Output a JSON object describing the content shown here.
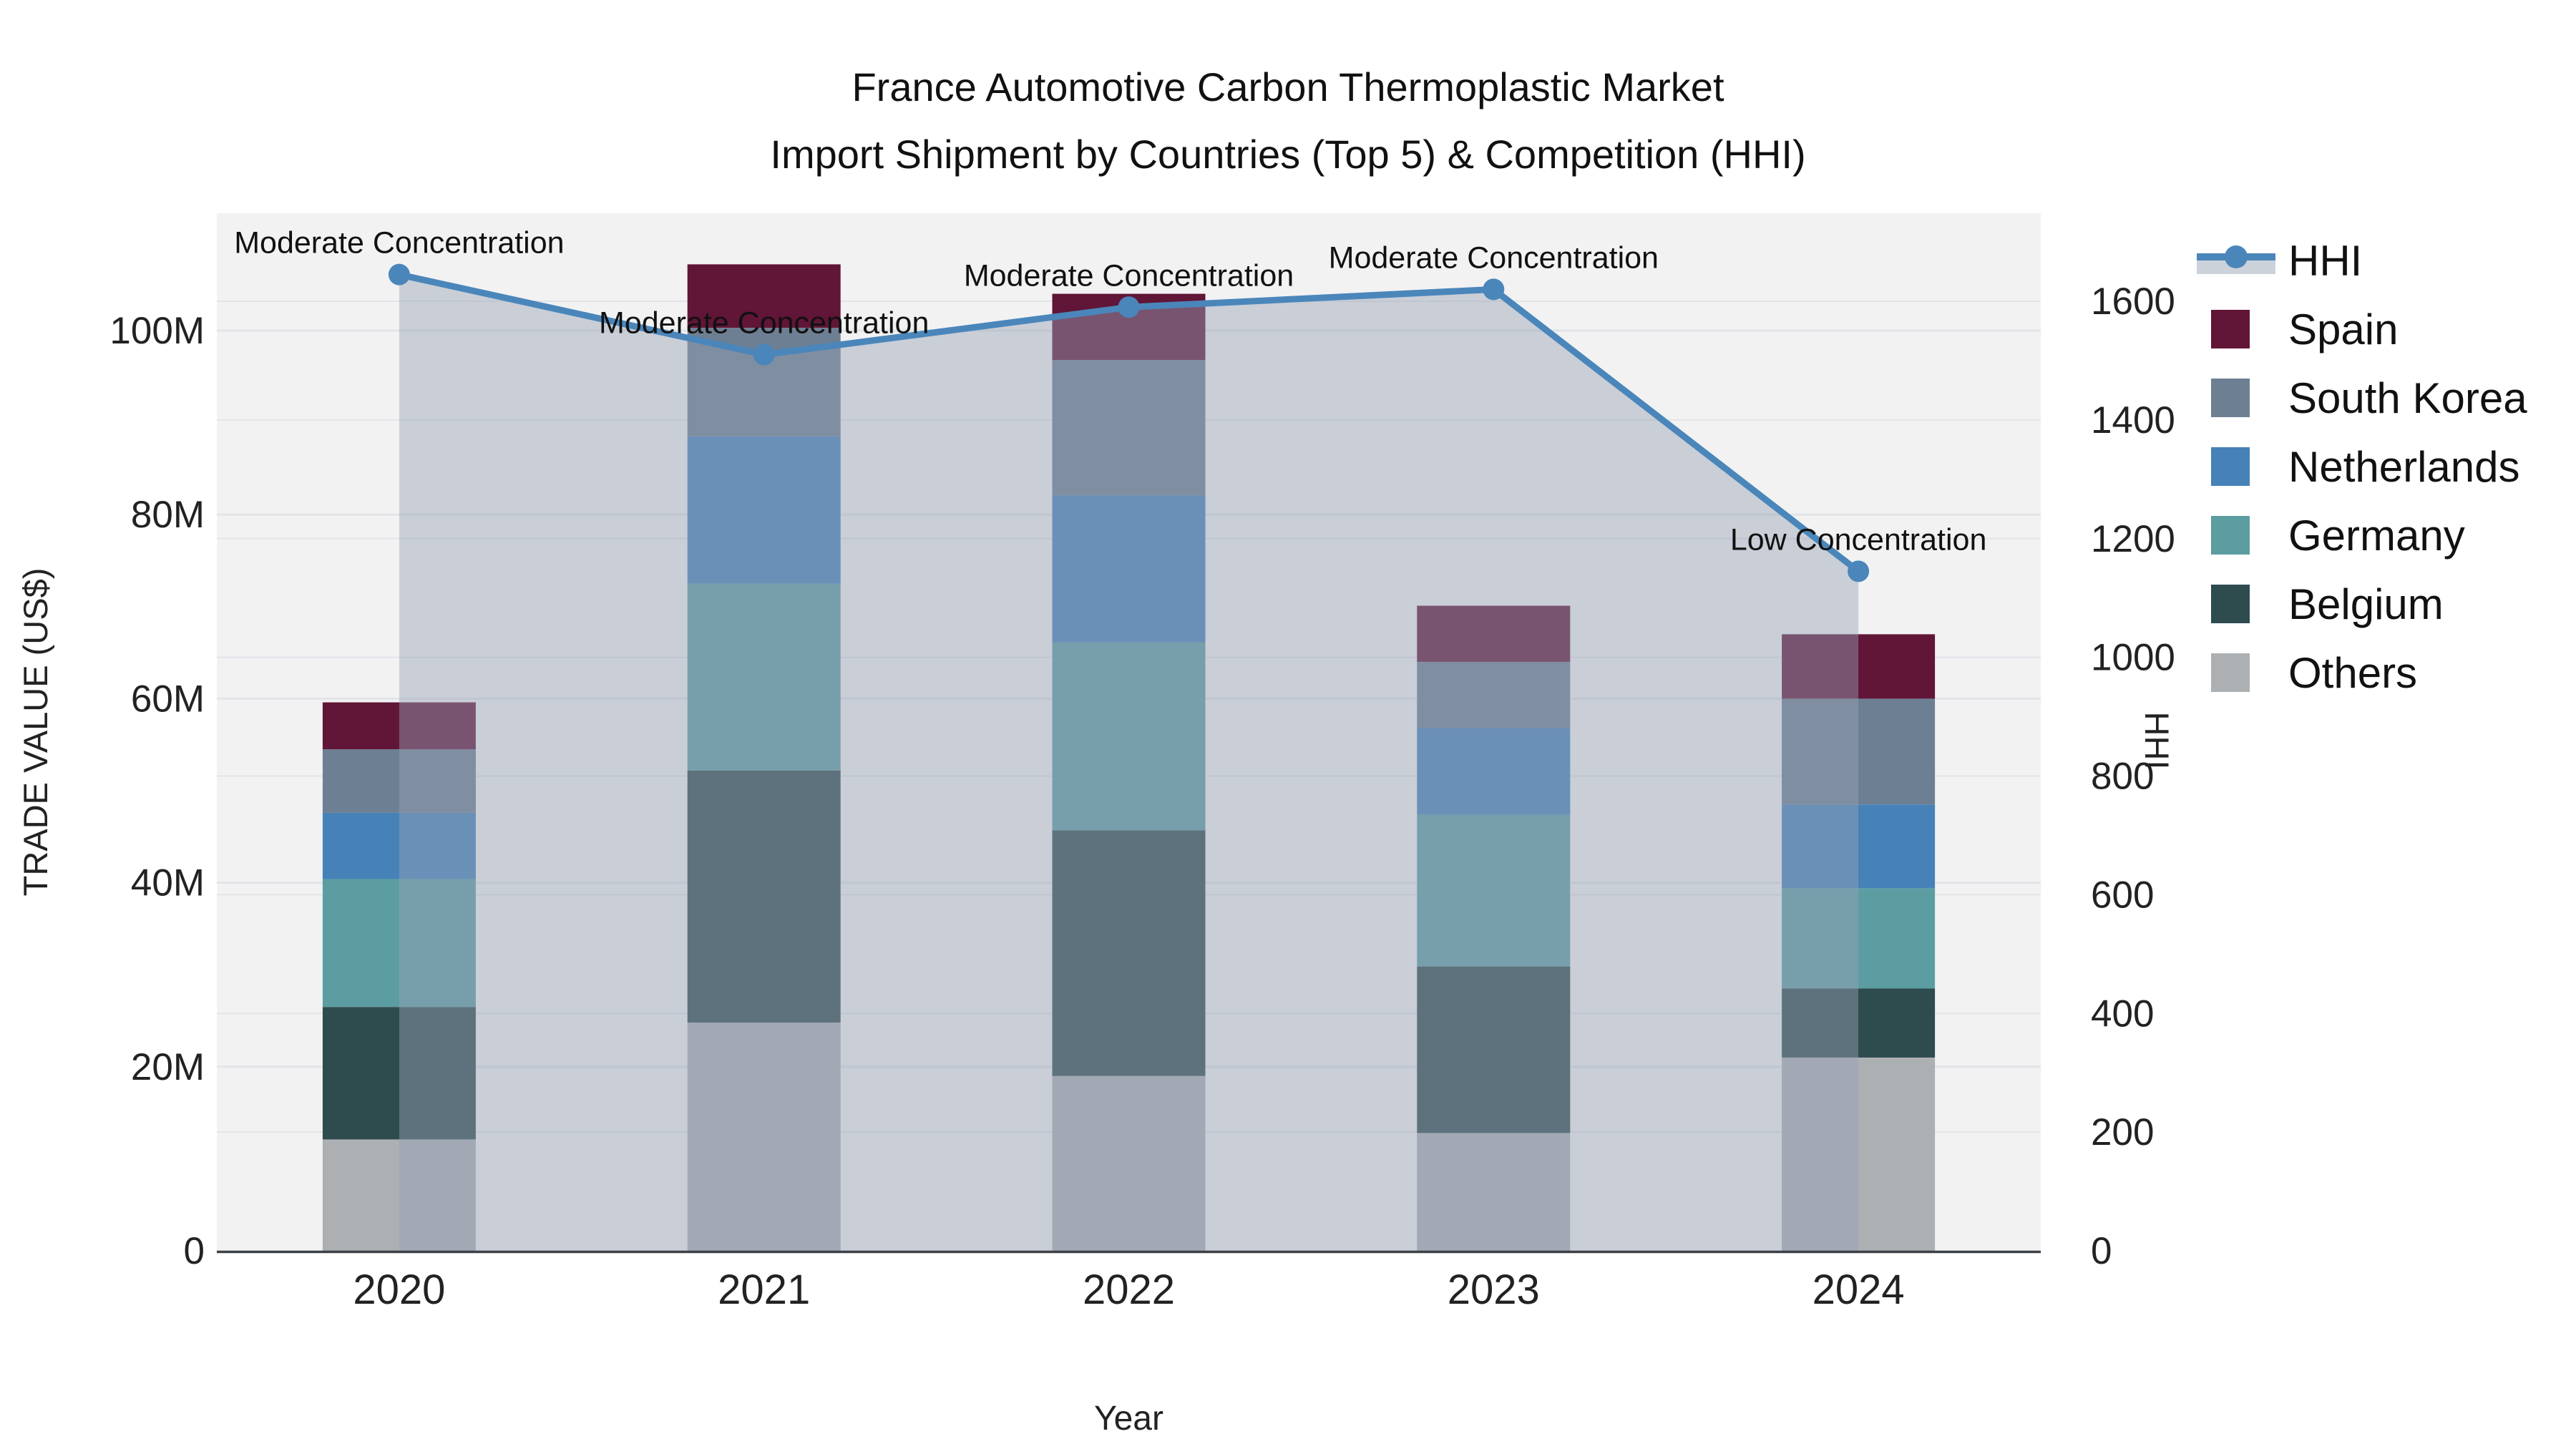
{
  "title": {
    "line1": "France Automotive Carbon Thermoplastic Market",
    "line2": "Import Shipment by Countries (Top 5) & Competition (HHI)"
  },
  "chart_data": {
    "type": "bar+line",
    "categories": [
      "2020",
      "2021",
      "2022",
      "2023",
      "2024"
    ],
    "xlabel": "Year",
    "y_left": {
      "label": "TRADE VALUE (US$)",
      "tick_labels": [
        "0",
        "20M",
        "40M",
        "60M",
        "80M",
        "100M"
      ],
      "tick_values": [
        0,
        20,
        40,
        60,
        80,
        100
      ],
      "range": [
        0,
        112.7
      ],
      "unit": "million US$"
    },
    "y_right": {
      "label": "HHI",
      "tick_labels": [
        "0",
        "200",
        "400",
        "600",
        "800",
        "1000",
        "1200",
        "1400",
        "1600"
      ],
      "tick_values": [
        0,
        200,
        400,
        600,
        800,
        1000,
        1200,
        1400,
        1600
      ],
      "range": [
        0,
        1749
      ]
    },
    "stack_order_bottom_to_top": [
      "Others",
      "Belgium",
      "Germany",
      "Netherlands",
      "South Korea",
      "Spain"
    ],
    "series": [
      {
        "name": "Others",
        "color": "#adb0b2",
        "values": [
          12.1,
          24.8,
          19.0,
          12.8,
          21.0
        ]
      },
      {
        "name": "Belgium",
        "color": "#2e4b4e",
        "values": [
          14.4,
          27.4,
          26.7,
          18.1,
          7.5
        ]
      },
      {
        "name": "Germany",
        "color": "#5c9da2",
        "values": [
          13.9,
          20.3,
          20.4,
          16.5,
          10.9
        ]
      },
      {
        "name": "Netherlands",
        "color": "#4681b8",
        "values": [
          7.2,
          16.0,
          16.0,
          9.4,
          9.1
        ]
      },
      {
        "name": "South Korea",
        "color": "#6d7f93",
        "values": [
          6.9,
          11.8,
          14.7,
          7.2,
          11.5
        ]
      },
      {
        "name": "Spain",
        "color": "#611537",
        "values": [
          5.1,
          6.9,
          7.2,
          6.1,
          7.0
        ]
      }
    ],
    "bar_totals": [
      59.6,
      107.2,
      104.0,
      70.1,
      67.0
    ],
    "hhi_line": {
      "name": "HHI",
      "color": "#4a86ba",
      "marker_color": "#4a86ba",
      "fill_color": "rgba(150,162,182,0.45)",
      "values": [
        1645,
        1510,
        1590,
        1620,
        1145
      ],
      "annotations": [
        "Moderate Concentration",
        "Moderate Concentration",
        "Moderate Concentration",
        "Moderate Concentration",
        "Low Concentration"
      ]
    },
    "legend": [
      {
        "label": "HHI",
        "type": "line",
        "color": "#4a86ba",
        "band_color": "#ccd2da"
      },
      {
        "label": "Spain",
        "type": "box",
        "color": "#611537"
      },
      {
        "label": "South Korea",
        "type": "box",
        "color": "#6d7f93"
      },
      {
        "label": "Netherlands",
        "type": "box",
        "color": "#4681b8"
      },
      {
        "label": "Germany",
        "type": "box",
        "color": "#5c9da2"
      },
      {
        "label": "Belgium",
        "type": "box",
        "color": "#2e4b4e"
      },
      {
        "label": "Others",
        "type": "box",
        "color": "#adb0b2"
      }
    ],
    "grid": true,
    "legend_position": "right",
    "plot_bg_color": "#f2f2f3",
    "gridline_color": "#e2e4e8",
    "axisline_color": "#3c4147",
    "text_color": "#222222"
  }
}
